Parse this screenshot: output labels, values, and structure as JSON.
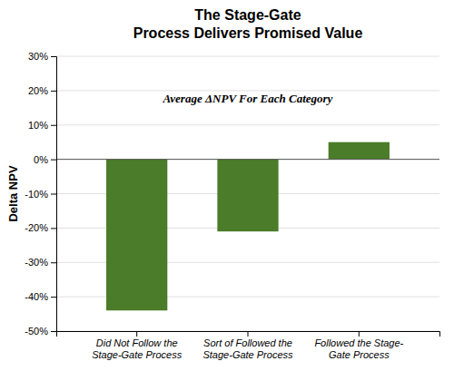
{
  "chart_data": {
    "type": "bar",
    "title": "The Stage-Gate\nProcess Delivers Promised Value",
    "y_label": "Delta NPV",
    "annotation": "Average ΔNPV For Each Category",
    "categories": [
      "Did Not Follow the\nStage-Gate Process",
      "Sort of Followed the\nStage-Gate Process",
      "Followed the Stage-\nGate Process"
    ],
    "values": [
      -44,
      -21,
      5
    ],
    "color": "#4a7c2a",
    "ylim": [
      -50,
      30
    ],
    "yticks": [
      {
        "value": -50,
        "label": "-50%"
      },
      {
        "value": -40,
        "label": "-40%"
      },
      {
        "value": -30,
        "label": "-30%"
      },
      {
        "value": -20,
        "label": "-20%"
      },
      {
        "value": -10,
        "label": "-10%"
      },
      {
        "value": 0,
        "label": "0%"
      },
      {
        "value": 10,
        "label": "10%"
      },
      {
        "value": 20,
        "label": "20%"
      },
      {
        "value": 30,
        "label": "30%"
      }
    ],
    "grid": true
  }
}
